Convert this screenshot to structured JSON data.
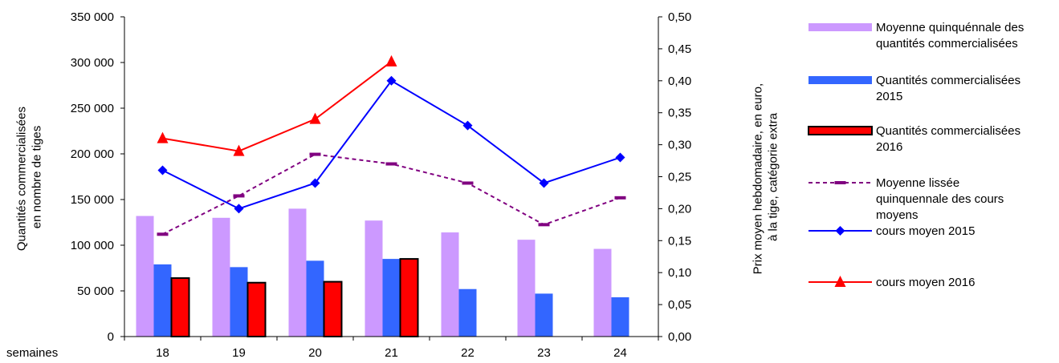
{
  "chart_data": {
    "type": "bar",
    "categories": [
      "18",
      "19",
      "20",
      "21",
      "22",
      "23",
      "24"
    ],
    "x_row_label": "semaines",
    "ylabel_left": "Quantités commercialisées en nombre de tiges",
    "ylabel_right": "Prix moyen hebdomadaire, en euro, à la tige, catégorie extra",
    "ylim_left": [
      0,
      350000
    ],
    "ylim_right": [
      0,
      0.5
    ],
    "yticks_left": [
      "0",
      "50 000",
      "100 000",
      "150 000",
      "200 000",
      "250 000",
      "300 000",
      "350 000"
    ],
    "yticks_right": [
      "0,00",
      "0,05",
      "0,10",
      "0,15",
      "0,20",
      "0,25",
      "0,30",
      "0,35",
      "0,40",
      "0,45",
      "0,50"
    ],
    "bar_series": [
      {
        "name": "Moyenne quinquénnale des quantités commercialisées",
        "color": "#cc99ff",
        "values": [
          132000,
          130000,
          140000,
          127000,
          114000,
          106000,
          96000
        ]
      },
      {
        "name": "Quantités commercialisées 2015",
        "color": "#3366ff",
        "values": [
          79000,
          76000,
          83000,
          85000,
          52000,
          47000,
          43000
        ]
      },
      {
        "name": "Quantités commercialisées 2016",
        "color": "#ff0000",
        "border": "#000000",
        "values": [
          64000,
          59000,
          60000,
          85000,
          null,
          null,
          null
        ]
      }
    ],
    "line_series": [
      {
        "name": "Moyenne lissée quinquennale des cours moyens",
        "color": "#800080",
        "style": "dashed",
        "marker": "dash",
        "values": [
          0.16,
          0.22,
          0.285,
          0.27,
          0.24,
          0.175,
          0.217
        ]
      },
      {
        "name": "cours moyen 2015",
        "color": "#0000ff",
        "style": "solid",
        "marker": "diamond",
        "values": [
          0.26,
          0.2,
          0.24,
          0.4,
          0.33,
          0.24,
          0.28
        ]
      },
      {
        "name": "cours moyen 2016",
        "color": "#ff0000",
        "style": "solid",
        "marker": "triangle",
        "values": [
          0.31,
          0.29,
          0.34,
          0.43,
          null,
          null,
          null
        ]
      }
    ],
    "legend": {
      "placement": "right",
      "entries": [
        [
          "Moyenne quinquénnale des",
          "quantités commercialisées"
        ],
        [
          "Quantités commercialisées",
          "2015"
        ],
        [
          "Quantités commercialisées",
          "2016"
        ],
        [
          "Moyenne lissée",
          "quinquennale des cours",
          "moyens"
        ],
        [
          "cours moyen 2015"
        ],
        [
          "cours moyen 2016"
        ]
      ]
    }
  }
}
